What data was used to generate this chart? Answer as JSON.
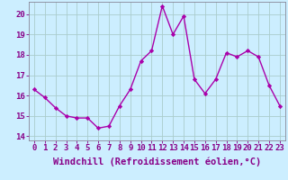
{
  "x": [
    0,
    1,
    2,
    3,
    4,
    5,
    6,
    7,
    8,
    9,
    10,
    11,
    12,
    13,
    14,
    15,
    16,
    17,
    18,
    19,
    20,
    21,
    22,
    23
  ],
  "y": [
    16.3,
    15.9,
    15.4,
    15.0,
    14.9,
    14.9,
    14.4,
    14.5,
    15.5,
    16.3,
    17.7,
    18.2,
    20.4,
    19.0,
    19.9,
    16.8,
    16.1,
    16.8,
    18.1,
    17.9,
    18.2,
    17.9,
    16.5,
    15.5
  ],
  "line_color": "#aa00aa",
  "marker": "D",
  "marker_size": 2.2,
  "bg_color": "#cceeff",
  "grid_color": "#aacccc",
  "xlabel": "Windchill (Refroidissement éolien,°C)",
  "ylim": [
    13.8,
    20.6
  ],
  "yticks": [
    14,
    15,
    16,
    17,
    18,
    19,
    20
  ],
  "xticks": [
    0,
    1,
    2,
    3,
    4,
    5,
    6,
    7,
    8,
    9,
    10,
    11,
    12,
    13,
    14,
    15,
    16,
    17,
    18,
    19,
    20,
    21,
    22,
    23
  ],
  "xlabel_fontsize": 7.5,
  "tick_fontsize": 6.5,
  "line_width": 1.0,
  "text_color": "#880088"
}
